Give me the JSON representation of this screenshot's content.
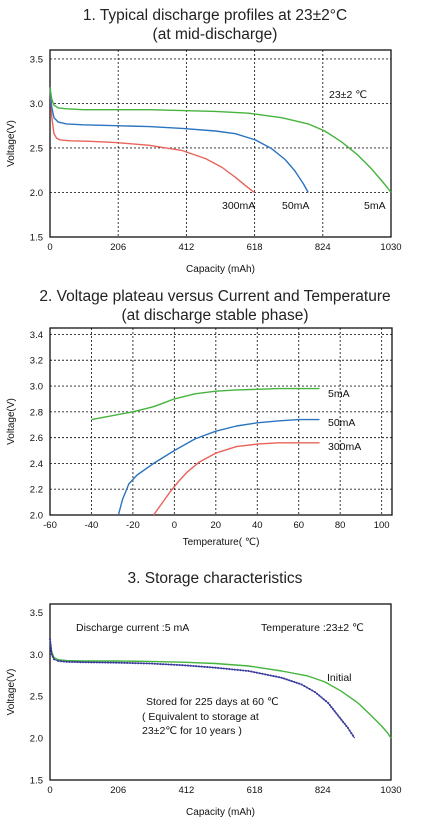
{
  "titles": {
    "t1_line1": "1. Typical discharge profiles at 23±2°C",
    "t1_line2": "(at mid-discharge)",
    "t2_line1": "2. Voltage plateau versus Current and Temperature",
    "t2_line2": "(at discharge stable phase)",
    "t3_line1": "3. Storage characteristics"
  },
  "chart_data": [
    {
      "type": "line",
      "title": "1. Typical discharge profiles at 23±2°C (at mid-discharge)",
      "xlabel": "Capacity (mAh)",
      "ylabel": "Voltage(V)",
      "xlim": [
        0,
        1030
      ],
      "ylim": [
        1.5,
        3.6
      ],
      "xticks": [
        "0",
        "206",
        "412",
        "618",
        "824",
        "1030"
      ],
      "yticks": [
        "1.5",
        "2.0",
        "2.5",
        "3.0",
        "3.5"
      ],
      "grid": true,
      "annotations": [
        "23±2 ℃"
      ],
      "series": [
        {
          "name": "300mA",
          "color": "#e8645a",
          "x": [
            0,
            5,
            12,
            20,
            30,
            60,
            120,
            200,
            300,
            400,
            470,
            520,
            560,
            590,
            610,
            618
          ],
          "y": [
            3.18,
            2.85,
            2.66,
            2.61,
            2.59,
            2.58,
            2.575,
            2.56,
            2.53,
            2.47,
            2.38,
            2.28,
            2.17,
            2.08,
            2.02,
            2.0
          ]
        },
        {
          "name": "50mA",
          "color": "#2a74c0",
          "x": [
            0,
            5,
            12,
            25,
            50,
            100,
            200,
            300,
            400,
            500,
            560,
            620,
            670,
            710,
            740,
            765,
            780
          ],
          "y": [
            3.18,
            2.96,
            2.84,
            2.79,
            2.77,
            2.76,
            2.75,
            2.74,
            2.72,
            2.69,
            2.66,
            2.59,
            2.49,
            2.37,
            2.24,
            2.1,
            2.0
          ]
        },
        {
          "name": "5mA",
          "color": "#44b43c",
          "x": [
            0,
            5,
            12,
            25,
            50,
            100,
            200,
            300,
            400,
            500,
            600,
            700,
            780,
            830,
            880,
            930,
            970,
            1000,
            1020,
            1030
          ],
          "y": [
            3.18,
            3.05,
            2.98,
            2.95,
            2.94,
            2.93,
            2.93,
            2.93,
            2.92,
            2.91,
            2.89,
            2.84,
            2.77,
            2.69,
            2.57,
            2.42,
            2.27,
            2.14,
            2.05,
            2.0
          ]
        }
      ]
    },
    {
      "type": "line",
      "title": "2. Voltage plateau versus Current and Temperature (at discharge stable phase)",
      "xlabel": "Temperature( ℃)",
      "ylabel": "Voltage(V)",
      "xlim": [
        -60,
        105
      ],
      "ylim": [
        2.0,
        3.45
      ],
      "xticks": [
        "-60",
        "-40",
        "-20",
        "0",
        "20",
        "40",
        "60",
        "80",
        "100"
      ],
      "yticks": [
        "2.0",
        "2.2",
        "2.4",
        "2.6",
        "2.8",
        "3.0",
        "3.2",
        "3.4"
      ],
      "grid": true,
      "series": [
        {
          "name": "5mA",
          "color": "#44b43c",
          "x": [
            -40,
            -30,
            -20,
            -10,
            -5,
            0,
            10,
            20,
            30,
            40,
            50,
            60,
            70
          ],
          "y": [
            2.74,
            2.77,
            2.8,
            2.84,
            2.87,
            2.9,
            2.94,
            2.96,
            2.97,
            2.975,
            2.98,
            2.98,
            2.98
          ]
        },
        {
          "name": "50mA",
          "color": "#2a74c0",
          "x": [
            -27,
            -25,
            -22,
            -18,
            -10,
            0,
            10,
            20,
            30,
            40,
            50,
            60,
            70
          ],
          "y": [
            2.0,
            2.12,
            2.24,
            2.31,
            2.4,
            2.5,
            2.59,
            2.65,
            2.69,
            2.715,
            2.73,
            2.74,
            2.74
          ]
        },
        {
          "name": "300mA",
          "color": "#e8645a",
          "x": [
            -10,
            -6,
            -2,
            2,
            6,
            12,
            20,
            30,
            40,
            50,
            60,
            70
          ],
          "y": [
            2.0,
            2.09,
            2.18,
            2.26,
            2.33,
            2.41,
            2.48,
            2.53,
            2.55,
            2.56,
            2.56,
            2.56
          ]
        }
      ]
    },
    {
      "type": "line",
      "title": "3. Storage characteristics",
      "xlabel": "Capacity (mAh)",
      "ylabel": "Voltage(V)",
      "xlim": [
        0,
        1030
      ],
      "ylim": [
        1.5,
        3.6
      ],
      "xticks": [
        "0",
        "206",
        "412",
        "618",
        "824",
        "1030"
      ],
      "yticks": [
        "1.5",
        "2.0",
        "2.5",
        "3.0",
        "3.5"
      ],
      "grid": false,
      "annotations": [
        "Discharge current :5 mA",
        "Temperature :23±2 ℃",
        "Initial",
        "Stored for 225 days at 60 ℃",
        "( Equivalent to storage at",
        "23±2℃ for 10 years )"
      ],
      "series": [
        {
          "name": "Initial",
          "color": "#44b43c",
          "x": [
            0,
            5,
            12,
            25,
            50,
            100,
            200,
            300,
            400,
            500,
            600,
            700,
            780,
            830,
            880,
            930,
            970,
            1000,
            1020,
            1030
          ],
          "y": [
            3.18,
            3.03,
            2.96,
            2.935,
            2.925,
            2.92,
            2.92,
            2.915,
            2.905,
            2.89,
            2.86,
            2.8,
            2.74,
            2.67,
            2.56,
            2.42,
            2.27,
            2.15,
            2.06,
            2.0
          ]
        },
        {
          "name": "Stored for 225 days at 60 ℃",
          "color": "#3a3a9c",
          "marker": "dot",
          "x": [
            0,
            5,
            12,
            25,
            50,
            100,
            200,
            300,
            400,
            500,
            600,
            700,
            760,
            800,
            840,
            870,
            900,
            920
          ],
          "y": [
            3.18,
            3.0,
            2.94,
            2.92,
            2.91,
            2.905,
            2.9,
            2.89,
            2.87,
            2.84,
            2.8,
            2.72,
            2.64,
            2.55,
            2.42,
            2.27,
            2.12,
            2.0
          ]
        }
      ]
    }
  ]
}
